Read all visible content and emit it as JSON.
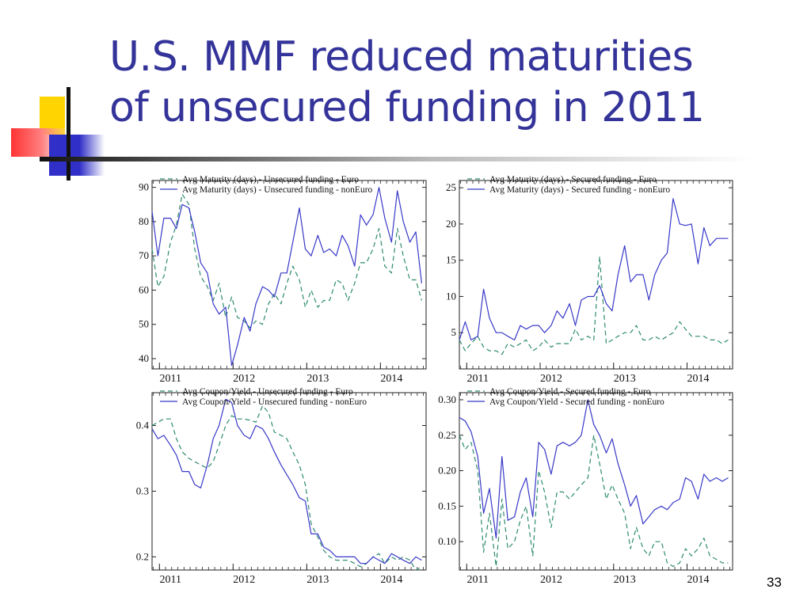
{
  "slide": {
    "title_line1": "U.S. MMF reduced maturities",
    "title_line2": "of unsecured funding in 2011",
    "page_number": "33"
  },
  "chart_data": [
    {
      "type": "line",
      "title": "",
      "legend": "top-left",
      "ylim": [
        37,
        92
      ],
      "xlim": [
        2010.9,
        2014.62
      ],
      "yticks": [
        40,
        50,
        60,
        70,
        80,
        90
      ],
      "xticks": [
        2011,
        2012,
        2013,
        2014
      ],
      "ytick_labels": [
        "40",
        "50",
        "60",
        "70",
        "80",
        "90"
      ],
      "xtick_labels": [
        "2011",
        "2012",
        "2013",
        "2014"
      ],
      "series": [
        {
          "name": "Avg Maturity (days) - Unsecured funding - Euro",
          "style": "dashed",
          "color": "#2e8b6e",
          "x": [
            2010.9,
            2010.98,
            2011.06,
            2011.15,
            2011.23,
            2011.31,
            2011.4,
            2011.48,
            2011.56,
            2011.65,
            2011.73,
            2011.81,
            2011.9,
            2011.98,
            2012.06,
            2012.15,
            2012.23,
            2012.31,
            2012.4,
            2012.48,
            2012.56,
            2012.65,
            2012.73,
            2012.81,
            2012.9,
            2012.98,
            2013.06,
            2013.15,
            2013.23,
            2013.31,
            2013.4,
            2013.48,
            2013.56,
            2013.65,
            2013.73,
            2013.81,
            2013.9,
            2013.98,
            2014.06,
            2014.15,
            2014.23,
            2014.31,
            2014.4,
            2014.48,
            2014.56
          ],
          "y": [
            72,
            61,
            64,
            74,
            79,
            88,
            85,
            72,
            64,
            61,
            57,
            62,
            52,
            58,
            52,
            51,
            49,
            51,
            50,
            56,
            59,
            56,
            62,
            67,
            63,
            55,
            60,
            55,
            57,
            57,
            63,
            62,
            57,
            62,
            68,
            68,
            72,
            78,
            67,
            65,
            78,
            70,
            63,
            63,
            57
          ]
        },
        {
          "name": "Avg Maturity (days) - Unsecured funding - nonEuro",
          "style": "solid",
          "color": "#3838c8",
          "x": [
            2010.9,
            2010.98,
            2011.06,
            2011.15,
            2011.23,
            2011.31,
            2011.4,
            2011.48,
            2011.56,
            2011.65,
            2011.73,
            2011.81,
            2011.9,
            2011.98,
            2012.06,
            2012.15,
            2012.23,
            2012.31,
            2012.4,
            2012.48,
            2012.56,
            2012.65,
            2012.73,
            2012.81,
            2012.9,
            2012.98,
            2013.06,
            2013.15,
            2013.23,
            2013.31,
            2013.4,
            2013.48,
            2013.56,
            2013.65,
            2013.73,
            2013.81,
            2013.9,
            2013.98,
            2014.06,
            2014.15,
            2014.23,
            2014.31,
            2014.4,
            2014.48,
            2014.56
          ],
          "y": [
            83,
            70,
            81,
            81,
            78,
            85,
            84,
            77,
            68,
            65,
            56,
            53,
            55,
            38,
            44,
            52,
            48,
            56,
            61,
            60,
            58,
            65,
            65,
            74,
            84,
            72,
            70,
            76,
            71,
            72,
            70,
            76,
            73,
            67,
            82,
            79,
            82,
            90,
            81,
            74,
            89,
            80,
            74,
            77,
            62
          ]
        }
      ]
    },
    {
      "type": "line",
      "title": "",
      "legend": "top-left",
      "ylim": [
        0,
        26
      ],
      "xlim": [
        2010.9,
        2014.62
      ],
      "yticks": [
        5,
        10,
        15,
        20,
        25
      ],
      "xticks": [
        2011,
        2012,
        2013,
        2014
      ],
      "ytick_labels": [
        "5",
        "10",
        "15",
        "20",
        "25"
      ],
      "xtick_labels": [
        "2011",
        "2012",
        "2013",
        "2014"
      ],
      "series": [
        {
          "name": "Avg Maturity (days) - Secured funding - Euro",
          "style": "dashed",
          "color": "#2e8b6e",
          "x": [
            2010.9,
            2010.98,
            2011.06,
            2011.15,
            2011.23,
            2011.31,
            2011.4,
            2011.48,
            2011.56,
            2011.65,
            2011.73,
            2011.81,
            2011.9,
            2011.98,
            2012.06,
            2012.15,
            2012.23,
            2012.31,
            2012.4,
            2012.48,
            2012.56,
            2012.65,
            2012.73,
            2012.81,
            2012.9,
            2012.98,
            2013.06,
            2013.15,
            2013.23,
            2013.31,
            2013.4,
            2013.48,
            2013.56,
            2013.65,
            2013.73,
            2013.81,
            2013.9,
            2013.98,
            2014.06,
            2014.15,
            2014.23,
            2014.31,
            2014.4,
            2014.48,
            2014.56
          ],
          "y": [
            4,
            2.5,
            3.5,
            4.5,
            3,
            2.5,
            2.5,
            2,
            3.5,
            3,
            3.5,
            4,
            2.5,
            3,
            4,
            3,
            3.5,
            3.5,
            3.5,
            5.5,
            4,
            4.5,
            4,
            15.5,
            3.5,
            4,
            4.5,
            5,
            5,
            6,
            4,
            4,
            4.5,
            4,
            4.5,
            5,
            6.5,
            5.5,
            4.5,
            4.5,
            4.5,
            4,
            4,
            3.5,
            4
          ]
        },
        {
          "name": "Avg Maturity (days) - Secured funding - nonEuro",
          "style": "solid",
          "color": "#3838c8",
          "x": [
            2010.9,
            2010.98,
            2011.06,
            2011.15,
            2011.23,
            2011.31,
            2011.4,
            2011.48,
            2011.56,
            2011.65,
            2011.73,
            2011.81,
            2011.9,
            2011.98,
            2012.06,
            2012.15,
            2012.23,
            2012.31,
            2012.4,
            2012.48,
            2012.56,
            2012.65,
            2012.73,
            2012.81,
            2012.9,
            2012.98,
            2013.06,
            2013.15,
            2013.23,
            2013.31,
            2013.4,
            2013.48,
            2013.56,
            2013.65,
            2013.73,
            2013.81,
            2013.9,
            2013.98,
            2014.06,
            2014.15,
            2014.23,
            2014.31,
            2014.4,
            2014.48,
            2014.56
          ],
          "y": [
            4,
            6.5,
            4,
            4.5,
            11,
            7,
            5,
            5,
            4.5,
            4,
            6,
            5.5,
            6,
            6,
            5,
            6,
            8,
            7,
            9,
            6,
            9.5,
            10,
            10,
            11.5,
            9,
            8,
            13,
            17,
            12,
            13,
            13,
            9.5,
            13,
            15,
            16,
            23.5,
            20,
            19.8,
            20,
            14.5,
            19.5,
            17,
            18,
            18,
            18
          ]
        }
      ]
    },
    {
      "type": "line",
      "title": "",
      "legend": "top-left",
      "ylim": [
        0.18,
        0.45
      ],
      "xlim": [
        2010.9,
        2014.62
      ],
      "yticks": [
        0.2,
        0.3,
        0.4
      ],
      "xticks": [
        2011,
        2012,
        2013,
        2014
      ],
      "ytick_labels": [
        "0.2",
        "0.3",
        "0.4"
      ],
      "xtick_labels": [
        "2011",
        "2012",
        "2013",
        "2014"
      ],
      "series": [
        {
          "name": "Avg Coupon/Yield - Unsecured funding - Euro",
          "style": "dashed",
          "color": "#2e8b6e",
          "x": [
            2010.9,
            2010.98,
            2011.06,
            2011.15,
            2011.23,
            2011.31,
            2011.4,
            2011.48,
            2011.56,
            2011.65,
            2011.73,
            2011.81,
            2011.9,
            2011.98,
            2012.06,
            2012.15,
            2012.23,
            2012.31,
            2012.4,
            2012.48,
            2012.56,
            2012.65,
            2012.73,
            2012.81,
            2012.9,
            2012.98,
            2013.06,
            2013.15,
            2013.23,
            2013.31,
            2013.4,
            2013.48,
            2013.56,
            2013.65,
            2013.73,
            2013.81,
            2013.9,
            2013.98,
            2014.06,
            2014.15,
            2014.23,
            2014.31,
            2014.4,
            2014.48,
            2014.56
          ],
          "y": [
            0.4,
            0.405,
            0.41,
            0.41,
            0.38,
            0.36,
            0.35,
            0.345,
            0.34,
            0.335,
            0.345,
            0.37,
            0.4,
            0.415,
            0.41,
            0.41,
            0.408,
            0.405,
            0.43,
            0.42,
            0.39,
            0.385,
            0.38,
            0.36,
            0.34,
            0.31,
            0.25,
            0.23,
            0.21,
            0.2,
            0.195,
            0.195,
            0.195,
            0.19,
            0.185,
            0.19,
            0.2,
            0.205,
            0.19,
            0.2,
            0.195,
            0.2,
            0.195,
            0.18,
            0.185
          ]
        },
        {
          "name": "Avg Coupon/Yield - Unsecured funding - nonEuro",
          "style": "solid",
          "color": "#3838c8",
          "x": [
            2010.9,
            2010.98,
            2011.06,
            2011.15,
            2011.23,
            2011.31,
            2011.4,
            2011.48,
            2011.56,
            2011.65,
            2011.73,
            2011.81,
            2011.9,
            2011.98,
            2012.06,
            2012.15,
            2012.23,
            2012.31,
            2012.4,
            2012.48,
            2012.56,
            2012.65,
            2012.73,
            2012.81,
            2012.9,
            2012.98,
            2013.06,
            2013.15,
            2013.23,
            2013.31,
            2013.4,
            2013.48,
            2013.56,
            2013.65,
            2013.73,
            2013.81,
            2013.9,
            2013.98,
            2014.06,
            2014.15,
            2014.23,
            2014.31,
            2014.4,
            2014.48,
            2014.56
          ],
          "y": [
            0.395,
            0.38,
            0.385,
            0.37,
            0.355,
            0.33,
            0.33,
            0.31,
            0.305,
            0.34,
            0.38,
            0.4,
            0.44,
            0.435,
            0.4,
            0.385,
            0.38,
            0.4,
            0.395,
            0.38,
            0.36,
            0.34,
            0.325,
            0.31,
            0.29,
            0.285,
            0.235,
            0.235,
            0.215,
            0.21,
            0.2,
            0.2,
            0.2,
            0.2,
            0.19,
            0.19,
            0.2,
            0.195,
            0.19,
            0.205,
            0.2,
            0.195,
            0.19,
            0.2,
            0.195
          ]
        }
      ]
    },
    {
      "type": "line",
      "title": "",
      "legend": "top-left",
      "ylim": [
        0.06,
        0.31
      ],
      "xlim": [
        2010.9,
        2014.62
      ],
      "yticks": [
        0.1,
        0.15,
        0.2,
        0.25,
        0.3
      ],
      "xticks": [
        2011,
        2012,
        2013,
        2014
      ],
      "ytick_labels": [
        "0.10",
        "0.15",
        "0.20",
        "0.25",
        "0.30"
      ],
      "xtick_labels": [
        "2011",
        "2012",
        "2013",
        "2014"
      ],
      "series": [
        {
          "name": "Avg Coupon/Yield - Secured funding - Euro",
          "style": "dashed",
          "color": "#2e8b6e",
          "x": [
            2010.9,
            2010.98,
            2011.06,
            2011.15,
            2011.23,
            2011.31,
            2011.4,
            2011.48,
            2011.56,
            2011.65,
            2011.73,
            2011.81,
            2011.9,
            2011.98,
            2012.06,
            2012.15,
            2012.23,
            2012.31,
            2012.4,
            2012.48,
            2012.56,
            2012.65,
            2012.73,
            2012.81,
            2012.9,
            2012.98,
            2013.06,
            2013.15,
            2013.23,
            2013.31,
            2013.4,
            2013.48,
            2013.56,
            2013.65,
            2013.73,
            2013.81,
            2013.9,
            2013.98,
            2014.06,
            2014.15,
            2014.23,
            2014.31,
            2014.4,
            2014.48,
            2014.56
          ],
          "y": [
            0.25,
            0.23,
            0.24,
            0.2,
            0.085,
            0.14,
            0.065,
            0.16,
            0.09,
            0.1,
            0.13,
            0.15,
            0.08,
            0.2,
            0.17,
            0.12,
            0.17,
            0.17,
            0.16,
            0.17,
            0.18,
            0.19,
            0.25,
            0.21,
            0.16,
            0.18,
            0.16,
            0.14,
            0.09,
            0.12,
            0.09,
            0.08,
            0.1,
            0.1,
            0.07,
            0.065,
            0.07,
            0.09,
            0.08,
            0.09,
            0.105,
            0.08,
            0.075,
            0.07,
            0.07
          ]
        },
        {
          "name": "Avg Coupon/Yield - Secured funding - nonEuro",
          "style": "solid",
          "color": "#3838c8",
          "x": [
            2010.9,
            2010.98,
            2011.06,
            2011.15,
            2011.23,
            2011.31,
            2011.4,
            2011.48,
            2011.56,
            2011.65,
            2011.73,
            2011.81,
            2011.9,
            2011.98,
            2012.06,
            2012.15,
            2012.23,
            2012.31,
            2012.4,
            2012.48,
            2012.56,
            2012.65,
            2012.73,
            2012.81,
            2012.9,
            2012.98,
            2013.06,
            2013.15,
            2013.23,
            2013.31,
            2013.4,
            2013.48,
            2013.56,
            2013.65,
            2013.73,
            2013.81,
            2013.9,
            2013.98,
            2014.06,
            2014.15,
            2014.23,
            2014.31,
            2014.4,
            2014.48,
            2014.56
          ],
          "y": [
            0.275,
            0.27,
            0.255,
            0.22,
            0.14,
            0.175,
            0.105,
            0.22,
            0.13,
            0.135,
            0.17,
            0.19,
            0.135,
            0.24,
            0.23,
            0.195,
            0.235,
            0.24,
            0.235,
            0.24,
            0.25,
            0.3,
            0.265,
            0.25,
            0.225,
            0.245,
            0.21,
            0.18,
            0.15,
            0.165,
            0.125,
            0.135,
            0.145,
            0.15,
            0.145,
            0.155,
            0.16,
            0.19,
            0.185,
            0.16,
            0.195,
            0.185,
            0.19,
            0.185,
            0.19
          ]
        }
      ]
    }
  ]
}
